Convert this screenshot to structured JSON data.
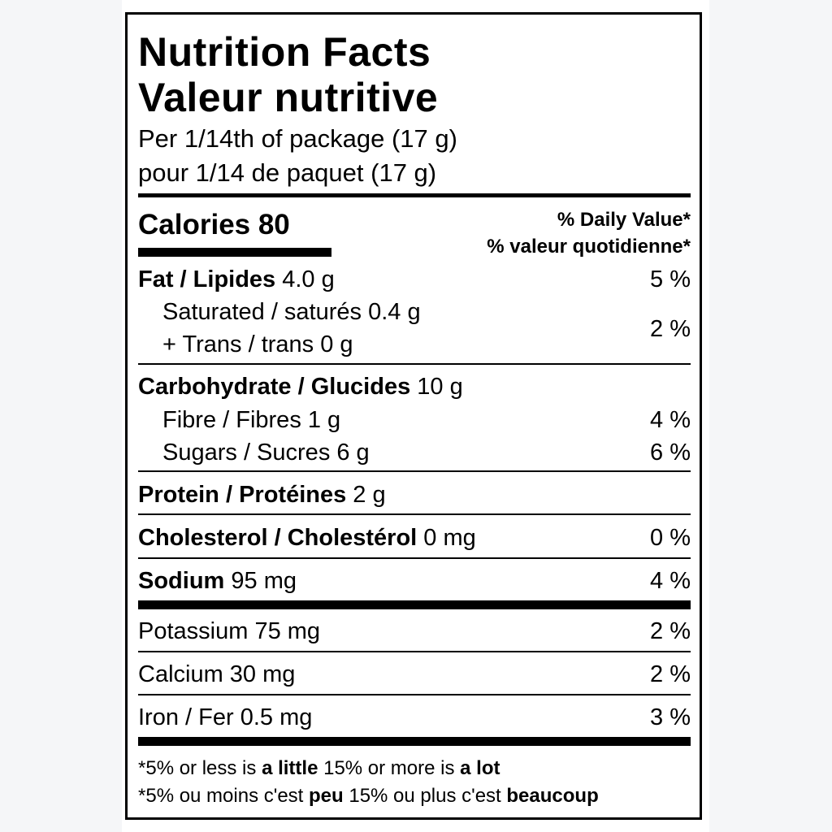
{
  "title_en": "Nutrition Facts",
  "title_fr": "Valeur nutritive",
  "serving_en": "Per 1/14th of package (17 g)",
  "serving_fr": "pour 1/14 de paquet (17 g)",
  "calories_label": "Calories 80",
  "dv_en": "% Daily Value*",
  "dv_fr": "% valeur quotidienne*",
  "rows": {
    "fat": {
      "label": "Fat / Lipides",
      "amount": "4.0 g",
      "dv": "5 %"
    },
    "saturated": {
      "label": "Saturated / saturés 0.4 g"
    },
    "trans": {
      "label": "+ Trans / trans 0 g",
      "dv": "2 %"
    },
    "carb": {
      "label": "Carbohydrate / Glucides",
      "amount": "10 g"
    },
    "fibre": {
      "label": "Fibre / Fibres 1 g",
      "dv": "4 %"
    },
    "sugars": {
      "label": "Sugars / Sucres 6 g",
      "dv": "6 %"
    },
    "protein": {
      "label": "Protein / Protéines",
      "amount": "2 g"
    },
    "cholesterol": {
      "label": "Cholesterol / Cholestérol",
      "amount": "0 mg",
      "dv": "0 %"
    },
    "sodium": {
      "label": "Sodium",
      "amount": "95 mg",
      "dv": "4 %"
    },
    "potassium": {
      "label": "Potassium 75 mg",
      "dv": "2 %"
    },
    "calcium": {
      "label": "Calcium 30 mg",
      "dv": "2 %"
    },
    "iron": {
      "label": "Iron / Fer 0.5 mg",
      "dv": "3 %"
    }
  },
  "footnote_en": {
    "a": "*5% or less is ",
    "b": "a little",
    "c": " 15% or more is ",
    "d": "a lot"
  },
  "footnote_fr": {
    "a": "*5% ou moins c'est ",
    "b": "peu",
    "c": " 15% ou plus c'est ",
    "d": "beaucoup"
  }
}
